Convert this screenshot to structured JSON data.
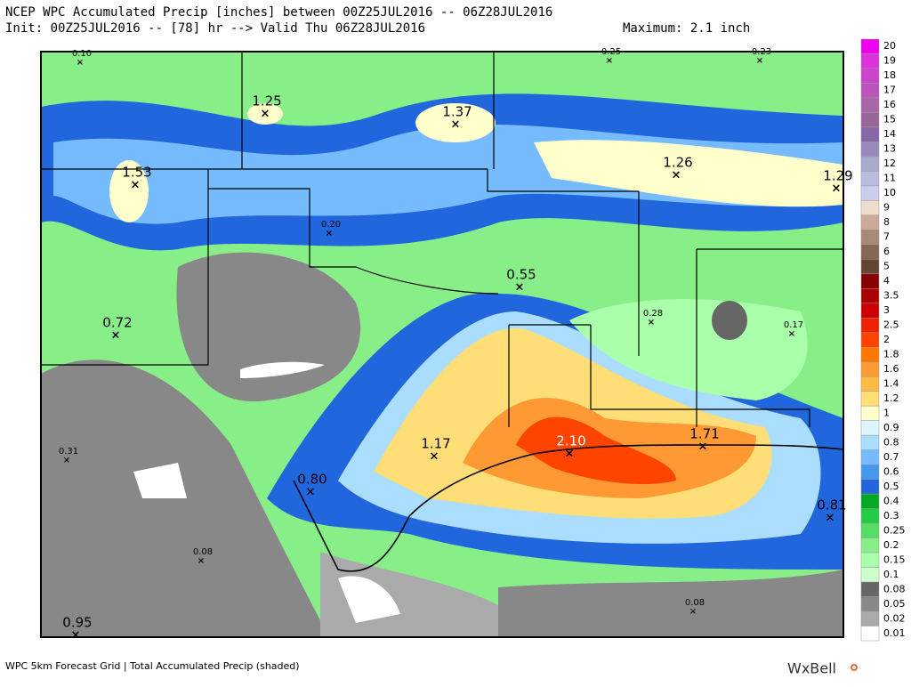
{
  "header": {
    "title": "NCEP WPC Accumulated Precip [inches] between 00Z25JUL2016 -- 06Z28JUL2016",
    "init": "Init: 00Z25JUL2016 -- [78] hr --> Valid Thu 06Z28JUL2016",
    "maximum": "Maximum: 2.1 inch"
  },
  "map": {
    "points": [
      "0.10",
      "1.25",
      "1.37",
      "0.25",
      "0.23",
      "1.53",
      "1.26",
      "1.29",
      "0.20",
      "0.55",
      "0.72",
      "0.28",
      "0.17",
      "1.17",
      "2.10",
      "1.71",
      "0.31",
      "0.80",
      "0.81",
      "0.08",
      "0.08",
      "0.95"
    ]
  },
  "legend": {
    "items": [
      {
        "label": "20",
        "color": "#ee00ee"
      },
      {
        "label": "19",
        "color": "#dd33dd"
      },
      {
        "label": "18",
        "color": "#cc44cc"
      },
      {
        "label": "17",
        "color": "#bb55bb"
      },
      {
        "label": "16",
        "color": "#aa66aa"
      },
      {
        "label": "15",
        "color": "#996699"
      },
      {
        "label": "14",
        "color": "#8866aa"
      },
      {
        "label": "13",
        "color": "#9988bb"
      },
      {
        "label": "12",
        "color": "#aaaacc"
      },
      {
        "label": "11",
        "color": "#bbbbdd"
      },
      {
        "label": "10",
        "color": "#ccccee"
      },
      {
        "label": "9",
        "color": "#eeddcc"
      },
      {
        "label": "8",
        "color": "#ccaa99"
      },
      {
        "label": "7",
        "color": "#aa8877"
      },
      {
        "label": "6",
        "color": "#886655"
      },
      {
        "label": "5",
        "color": "#664433"
      },
      {
        "label": "4",
        "color": "#880000"
      },
      {
        "label": "3.5",
        "color": "#aa0000"
      },
      {
        "label": "3",
        "color": "#cc0000"
      },
      {
        "label": "2.5",
        "color": "#ee2200"
      },
      {
        "label": "2",
        "color": "#ff4400"
      },
      {
        "label": "1.8",
        "color": "#ff7700"
      },
      {
        "label": "1.6",
        "color": "#ff9933"
      },
      {
        "label": "1.4",
        "color": "#ffbb44"
      },
      {
        "label": "1.2",
        "color": "#ffdd77"
      },
      {
        "label": "1",
        "color": "#ffffcc"
      },
      {
        "label": "0.9",
        "color": "#ddf5ff"
      },
      {
        "label": "0.8",
        "color": "#aaddff"
      },
      {
        "label": "0.7",
        "color": "#77bbff"
      },
      {
        "label": "0.6",
        "color": "#4499ee"
      },
      {
        "label": "0.5",
        "color": "#2266dd"
      },
      {
        "label": "0.4",
        "color": "#00aa22"
      },
      {
        "label": "0.3",
        "color": "#22cc44"
      },
      {
        "label": "0.25",
        "color": "#55dd66"
      },
      {
        "label": "0.2",
        "color": "#88ee88"
      },
      {
        "label": "0.15",
        "color": "#aaffaa"
      },
      {
        "label": "0.1",
        "color": "#ccffcc"
      },
      {
        "label": "0.08",
        "color": "#666666"
      },
      {
        "label": "0.05",
        "color": "#888888"
      },
      {
        "label": "0.02",
        "color": "#aaaaaa"
      },
      {
        "label": "0.01",
        "color": "#ffffff"
      }
    ]
  },
  "footer": {
    "caption": "WPC 5km Forecast Grid | Total Accumulated Precip (shaded)",
    "logo": "WxBell"
  }
}
